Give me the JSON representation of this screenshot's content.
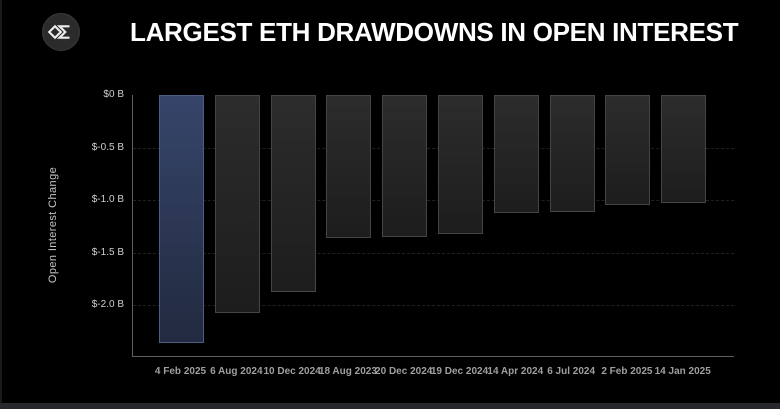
{
  "logo": {
    "icon": "sigma-diamond-logo"
  },
  "header": {
    "title": "LARGEST ETH DRAWDOWNS IN OPEN INTEREST"
  },
  "chart_data": {
    "type": "bar",
    "title": "LARGEST ETH DRAWDOWNS IN OPEN INTEREST",
    "xlabel": "",
    "ylabel": "Open Interest Change",
    "unit": "billions USD",
    "categories": [
      "4 Feb 2025",
      "6 Aug 2024",
      "10 Dec 2024",
      "18 Aug 2023",
      "20 Dec 2024",
      "19 Dec 2024",
      "14 Apr 2024",
      "6 Jul 2024",
      "2 Feb 2025",
      "14 Jan 2025"
    ],
    "values": [
      -2.36,
      -2.08,
      -1.88,
      -1.36,
      -1.35,
      -1.32,
      -1.12,
      -1.11,
      -1.05,
      -1.03
    ],
    "ylim": [
      -2.5,
      0
    ],
    "yticks": [
      {
        "label": "$0 B",
        "value": 0
      },
      {
        "label": "$-0.5 B",
        "value": -0.5
      },
      {
        "label": "$-1.0 B",
        "value": -1.0
      },
      {
        "label": "$-1.5 B",
        "value": -1.5
      },
      {
        "label": "$-2.0 B",
        "value": -2.0
      }
    ],
    "grid": "horizontal-dashed",
    "legend": "none",
    "highlight_index": 0,
    "colors": {
      "background": "#000000",
      "axis": "#5c6066",
      "title": "#ffffff",
      "y_tick_label": "#cfcfcf",
      "x_tick_label": "#9f9f9f",
      "bar_fill_top": "#2c2c2c",
      "bar_fill_bottom": "#1d1d1d",
      "bar_border": "#454545",
      "highlight_fill_top": "#36456a",
      "highlight_fill_bottom": "#212a3f",
      "highlight_border": "#4d5e84"
    }
  }
}
